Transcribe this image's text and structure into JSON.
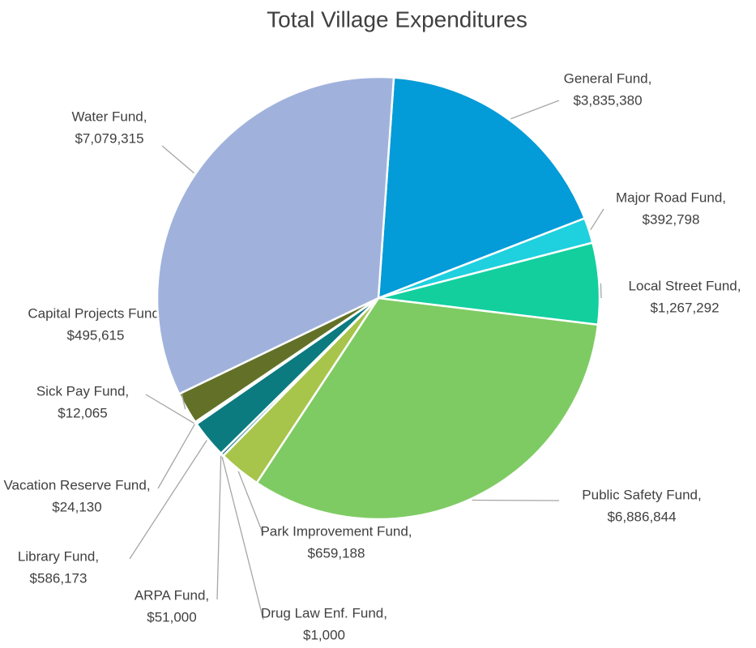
{
  "chart_data": {
    "type": "pie",
    "title": "Total Village Expenditures",
    "categories": [
      "General Fund,",
      "Major Road Fund,",
      "Local Street Fund,",
      "Public Safety Fund,",
      "Park Improvement Fund,",
      "Drug Law Enf. Fund,",
      "ARPA Fund,",
      "Library Fund,",
      "Vacation Reserve Fund,",
      "Sick Pay Fund,",
      "Capital Projects Fund,",
      "Water Fund,"
    ],
    "values": [
      3835380,
      392798,
      1267292,
      6886844,
      659188,
      1000,
      51000,
      586173,
      24130,
      12065,
      495615,
      7079315
    ],
    "value_labels": [
      "$3,835,380",
      "$392,798",
      "$1,267,292",
      "$6,886,844",
      "$659,188",
      "$1,000",
      "$51,000",
      "$586,173",
      "$24,130",
      "$12,065",
      "$495,615",
      "$7,079,315"
    ],
    "colors": [
      "#039bd8",
      "#1fd0de",
      "#13cf9e",
      "#7ecb63",
      "#a7c44b",
      "#2a9a8c",
      "#3c8f9a",
      "#0b7b80",
      "#3a9a7a",
      "#4f7a30",
      "#637128",
      "#a0b2dc"
    ]
  }
}
